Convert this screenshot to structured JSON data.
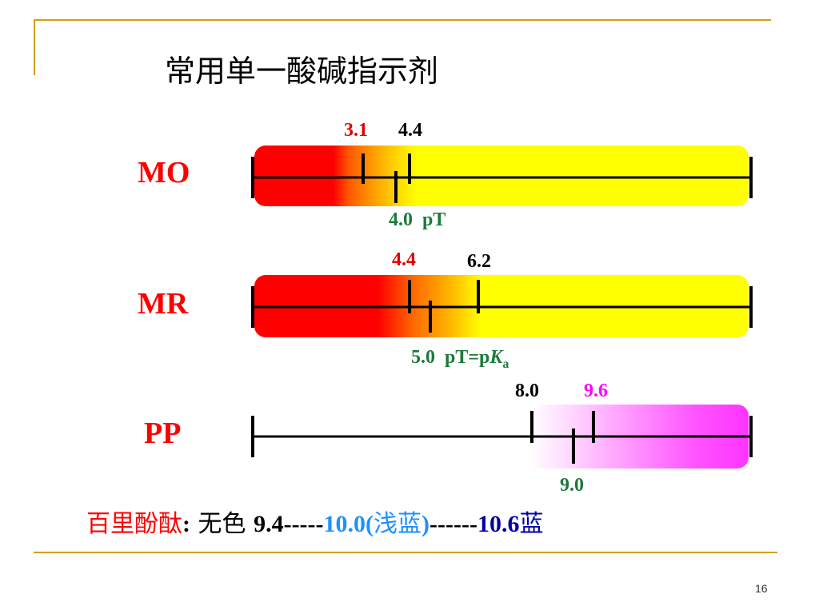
{
  "title": "常用单一酸碱指示剂",
  "page_number": "16",
  "colors": {
    "frame": "#D4A017",
    "acid": "#ff0000",
    "base_yellow": "#ffff00",
    "base_pink": "#ff33ff",
    "pT_green": "#1a7a3a",
    "magenta": "#ff00ff",
    "light_blue": "#1e90ff",
    "dark_blue": "#0000aa"
  },
  "indicators": [
    {
      "name": "MO",
      "range_low": "3.1",
      "range_high": "4.4",
      "range_low_value": 3.1,
      "range_high_value": 4.4,
      "pT_value": 4.0,
      "pT_num": "4.0",
      "pT_label": "pT",
      "acid_color": "red",
      "base_color": "yellow"
    },
    {
      "name": "MR",
      "range_low": "4.4",
      "range_high": "6.2",
      "range_low_value": 4.4,
      "range_high_value": 6.2,
      "pT_value": 5.0,
      "pT_num": "5.0",
      "pT_label": "pT=p",
      "pT_K": "K",
      "pT_sub": "a",
      "acid_color": "red",
      "base_color": "yellow"
    },
    {
      "name": "PP",
      "range_low": "8.0",
      "range_high": "9.6",
      "range_low_value": 8.0,
      "range_high_value": 9.6,
      "pT_value": 9.0,
      "pT_num": "9.0",
      "acid_color": "colorless",
      "base_color": "pink"
    }
  ],
  "note": {
    "name": "百里酚酞",
    "colon": ":",
    "colorless": " 无色 ",
    "start": "9.4-----",
    "mid": "10.0(",
    "mid_color": "浅蓝",
    "mid_close": ")",
    "dash": "------",
    "end": "10.6",
    "end_color": "蓝"
  }
}
